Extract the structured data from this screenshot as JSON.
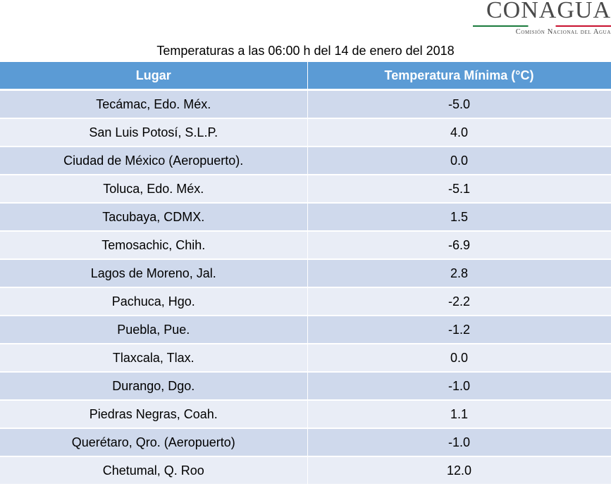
{
  "logo": {
    "name": "CONAGUA",
    "subtitle": "Comisión Nacional del Agua"
  },
  "title": "Temperaturas a las 06:00 h del 14 de enero del 2018",
  "table": {
    "headers": [
      "Lugar",
      "Temperatura Mínima (°C)"
    ],
    "rows": [
      {
        "place": "Tecámac, Edo. Méx.",
        "temp": "-5.0"
      },
      {
        "place": "San Luis Potosí, S.L.P.",
        "temp": "4.0"
      },
      {
        "place": "Ciudad de México (Aeropuerto).",
        "temp": "0.0"
      },
      {
        "place": "Toluca, Edo. Méx.",
        "temp": "-5.1"
      },
      {
        "place": "Tacubaya, CDMX.",
        "temp": "1.5"
      },
      {
        "place": "Temosachic, Chih.",
        "temp": "-6.9"
      },
      {
        "place": "Lagos de Moreno, Jal.",
        "temp": "2.8"
      },
      {
        "place": "Pachuca, Hgo.",
        "temp": "-2.2"
      },
      {
        "place": "Puebla, Pue.",
        "temp": "-1.2"
      },
      {
        "place": "Tlaxcala, Tlax.",
        "temp": "0.0"
      },
      {
        "place": "Durango, Dgo.",
        "temp": "-1.0"
      },
      {
        "place": "Piedras Negras, Coah.",
        "temp": "1.1"
      },
      {
        "place": "Querétaro, Qro. (Aeropuerto)",
        "temp": "-1.0"
      },
      {
        "place": "Chetumal, Q. Roo",
        "temp": "12.0"
      }
    ]
  },
  "colors": {
    "header_bg": "#5b9bd5",
    "row_odd": "#cfd9ec",
    "row_even": "#e9edf6",
    "logo_green": "#1a7a3c",
    "logo_red": "#c8102e"
  }
}
